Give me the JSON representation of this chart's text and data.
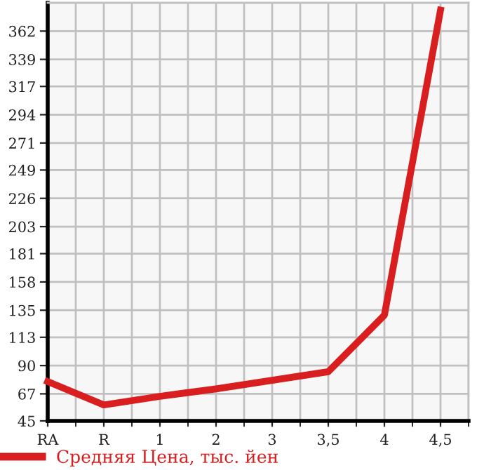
{
  "chart_data": {
    "type": "line",
    "categories": [
      "RA",
      "R",
      "1",
      "2",
      "3",
      "3,5",
      "4",
      "4,5"
    ],
    "series": [
      {
        "name": "Средняя Цена, тыс. йен",
        "color": "#d81e1e",
        "values": [
          77,
          58,
          65,
          71,
          78,
          85,
          131,
          379
        ]
      }
    ],
    "ylim": [
      45,
      385
    ],
    "yticks": [
      45,
      67,
      90,
      113,
      135,
      158,
      181,
      203,
      226,
      249,
      271,
      294,
      317,
      339,
      362
    ],
    "grid": true,
    "legend": "bottom left",
    "marker": "none",
    "line_style": "solid"
  }
}
